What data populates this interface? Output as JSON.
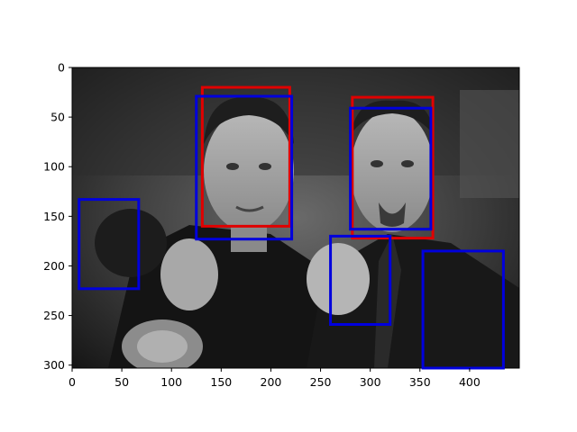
{
  "chart_data": {
    "type": "image-with-bounding-boxes",
    "title": "",
    "xlabel": "",
    "ylabel": "",
    "image": {
      "description": "grayscale photo of two men posing with fists raised",
      "width": 450,
      "height": 303
    },
    "xlim": [
      0,
      450
    ],
    "ylim": [
      303,
      0
    ],
    "y_inverted": true,
    "x_ticks": [
      0,
      50,
      100,
      150,
      200,
      250,
      300,
      350,
      400
    ],
    "y_ticks": [
      0,
      50,
      100,
      150,
      200,
      250,
      300
    ],
    "grid": false,
    "legend": "none",
    "box_series": [
      {
        "color": "#e00000",
        "boxes": [
          {
            "x0": 131,
            "y0": 20,
            "x1": 219,
            "y1": 160
          },
          {
            "x0": 282,
            "y0": 30,
            "x1": 363,
            "y1": 172
          }
        ]
      },
      {
        "color": "#0000dd",
        "boxes": [
          {
            "x0": 125,
            "y0": 29,
            "x1": 221,
            "y1": 173
          },
          {
            "x0": 280,
            "y0": 41,
            "x1": 361,
            "y1": 163
          },
          {
            "x0": 7,
            "y0": 133,
            "x1": 67,
            "y1": 223
          },
          {
            "x0": 260,
            "y0": 170,
            "x1": 320,
            "y1": 259
          },
          {
            "x0": 353,
            "y0": 185,
            "x1": 434,
            "y1": 303
          }
        ]
      }
    ]
  }
}
